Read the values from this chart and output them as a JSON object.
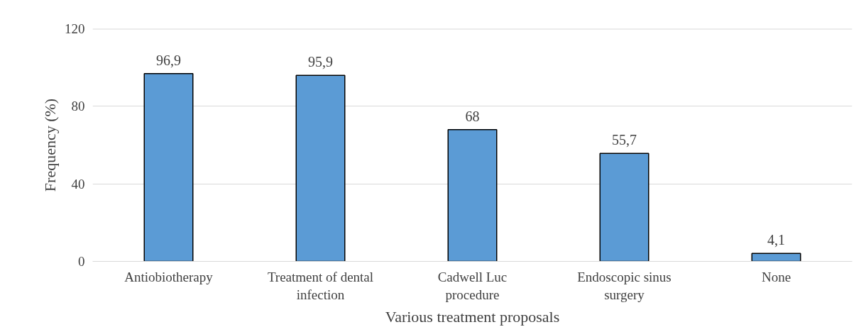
{
  "chart_data": {
    "type": "bar",
    "xlabel": "Various treatment proposals",
    "ylabel": "Frequency (%)",
    "categories": [
      "Antiobiotherapy",
      "Treatment of dental infection",
      "Cadwell Luc procedure",
      "Endoscopic sinus surgery",
      "None"
    ],
    "values": [
      96.9,
      95.9,
      68,
      55.7,
      4.1
    ],
    "value_labels": [
      "96,9",
      "95,9",
      "68",
      "55,7",
      "4,1"
    ],
    "color": "#5b9bd5",
    "ylim": [
      0,
      120
    ],
    "yticks": [
      0,
      40,
      80,
      120
    ],
    "grid": "y"
  }
}
